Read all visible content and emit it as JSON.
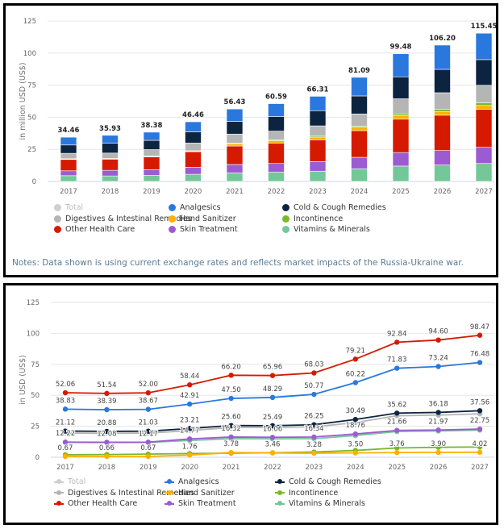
{
  "colors": {
    "Total": "#cfcfcf",
    "Analgesics": "#2a78de",
    "Cold & Cough Remedies": "#0d2440",
    "Digestives & Intestinal Remedies": "#b5b5b5",
    "Hand Sanitizer": "#ffb000",
    "Incontinence": "#79b82a",
    "Other Health Care": "#d61a00",
    "Skin Treatment": "#9d5bd2",
    "Vitamins & Minerals": "#74c799"
  },
  "legend": [
    "Total",
    "Analgesics",
    "Cold & Cough Remedies",
    "Digestives & Intestinal Remedies",
    "Hand Sanitizer",
    "Incontinence",
    "Other Health Care",
    "Skin Treatment",
    "Vitamins & Minerals"
  ],
  "notes": "Notes: Data shown is using current exchange rates and reflects market impacts of the Russia-Ukraine war.",
  "chart_data": [
    {
      "type": "bar",
      "stacked": true,
      "ylabel": "in million USD (US$)",
      "ylim": [
        0,
        125
      ],
      "yticks": [
        0,
        25,
        50,
        75,
        100,
        125
      ],
      "grid": true,
      "legend_position": "bottom",
      "categories": [
        "2017",
        "2018",
        "2019",
        "2020",
        "2021",
        "2022",
        "2023",
        "2024",
        "2025",
        "2026",
        "2027"
      ],
      "totals": [
        "34.46",
        "35.93",
        "38.38",
        "46.46",
        "56.43",
        "60.59",
        "66.31",
        "81.09",
        "99.48",
        "106.20",
        "115.45"
      ],
      "series": [
        {
          "name": "Vitamins & Minerals",
          "values": [
            4.5,
            4.3,
            4.7,
            5.6,
            6.6,
            7.2,
            8.0,
            9.9,
            12.0,
            12.8,
            14.0
          ]
        },
        {
          "name": "Skin Treatment",
          "values": [
            3.8,
            4.4,
            4.4,
            5.5,
            6.6,
            6.8,
            7.5,
            8.9,
            10.5,
            11.3,
            12.6
          ]
        },
        {
          "name": "Other Health Care",
          "values": [
            9.0,
            8.8,
            10.1,
            12.0,
            14.4,
            15.9,
            16.9,
            20.8,
            26.0,
            27.5,
            29.5
          ]
        },
        {
          "name": "Hand Sanitizer",
          "values": [
            0.1,
            0.1,
            0.2,
            0.5,
            1.7,
            1.8,
            2.1,
            2.6,
            2.7,
            2.9,
            3.0
          ]
        },
        {
          "name": "Incontinence",
          "values": [
            0.3,
            0.3,
            0.3,
            0.3,
            0.6,
            0.7,
            0.8,
            0.9,
            1.4,
            1.8,
            2.2
          ]
        },
        {
          "name": "Digestives & Intestinal Remedies",
          "values": [
            4.2,
            4.2,
            5.1,
            6.0,
            7.0,
            6.8,
            8.0,
            9.5,
            11.8,
            12.8,
            13.6
          ]
        },
        {
          "name": "Cold & Cough Remedies",
          "values": [
            6.5,
            7.8,
            7.2,
            8.7,
            9.9,
            11.3,
            11.8,
            14.0,
            17.1,
            18.2,
            20.0
          ]
        },
        {
          "name": "Analgesics",
          "values": [
            6.06,
            6.03,
            6.38,
            7.86,
            9.63,
            10.09,
            11.21,
            14.49,
            17.98,
            18.9,
            20.55
          ]
        }
      ]
    },
    {
      "type": "line",
      "ylabel": "in USD (US$)",
      "ylim": [
        0,
        125
      ],
      "yticks": [
        0,
        25,
        50,
        75,
        100,
        125
      ],
      "grid": true,
      "legend_position": "bottom",
      "categories": [
        "2017",
        "2018",
        "2019",
        "2020",
        "2021",
        "2022",
        "2023",
        "2024",
        "2025",
        "2026",
        "2027"
      ],
      "series": [
        {
          "name": "Digestives & Intestinal Remedies",
          "values": [
            19.5,
            19.3,
            19.5,
            21.5,
            24.0,
            24.0,
            24.5,
            28.0,
            33.5,
            34.0,
            35.0
          ],
          "labels": null
        },
        {
          "name": "Incontinence",
          "values": [
            2.0,
            2.2,
            2.5,
            3.0,
            3.3,
            3.6,
            4.2,
            5.5,
            7.5,
            8.0,
            8.3
          ],
          "labels": null
        },
        {
          "name": "Vitamins & Minerals",
          "values": [
            12.0,
            11.9,
            12.0,
            13.5,
            15.0,
            14.8,
            15.0,
            17.5,
            20.8,
            21.2,
            21.9
          ],
          "labels": null
        },
        {
          "name": "Hand Sanitizer",
          "values": [
            0.67,
            0.66,
            0.67,
            1.76,
            3.78,
            3.46,
            3.28,
            3.5,
            3.76,
            3.9,
            4.02
          ],
          "labels": [
            "0.67",
            "0.66",
            "0.67",
            "1.76",
            "3.78",
            "3.46",
            "3.28",
            "3.50",
            "3.76",
            "3.90",
            "4.02"
          ]
        },
        {
          "name": "Skin Treatment",
          "values": [
            12.22,
            12.08,
            12.17,
            14.77,
            16.32,
            16.06,
            16.34,
            18.76,
            21.66,
            21.97,
            22.75
          ],
          "labels": [
            "12.22",
            "12.08",
            "12.17",
            "14.77",
            "16.32",
            "16.06",
            "16.34",
            "18.76",
            "21.66",
            "21.97",
            "22.75"
          ]
        },
        {
          "name": "Cold & Cough Remedies",
          "values": [
            21.12,
            20.88,
            21.03,
            23.21,
            25.6,
            25.49,
            26.25,
            30.49,
            35.62,
            36.18,
            37.56
          ],
          "labels": [
            "21.12",
            "20.88",
            "21.03",
            "23.21",
            "25.60",
            "25.49",
            "26.25",
            "30.49",
            "35.62",
            "36.18",
            "37.56"
          ]
        },
        {
          "name": "Analgesics",
          "values": [
            38.83,
            38.39,
            38.67,
            42.91,
            47.5,
            48.29,
            50.77,
            60.22,
            71.83,
            73.24,
            76.48
          ],
          "labels": [
            "38.83",
            "38.39",
            "38.67",
            "42.91",
            "47.50",
            "48.29",
            "50.77",
            "60.22",
            "71.83",
            "73.24",
            "76.48"
          ]
        },
        {
          "name": "Other Health Care",
          "values": [
            52.06,
            51.54,
            52.0,
            58.44,
            66.2,
            65.96,
            68.03,
            79.21,
            92.84,
            94.6,
            98.47
          ],
          "labels": [
            "52.06",
            "51.54",
            "52.00",
            "58.44",
            "66.20",
            "65.96",
            "68.03",
            "79.21",
            "92.84",
            "94.60",
            "98.47"
          ]
        }
      ]
    }
  ]
}
